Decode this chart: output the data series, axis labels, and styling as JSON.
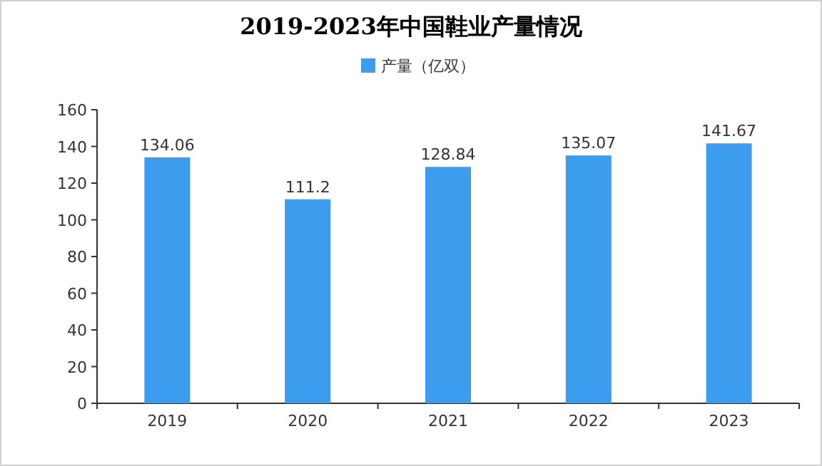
{
  "chart_data": {
    "type": "bar",
    "title": "2019-2023年中国鞋业产量情况",
    "categories": [
      "2019",
      "2020",
      "2021",
      "2022",
      "2023"
    ],
    "series": [
      {
        "name": "产量（亿双）",
        "color": "#3c9cee",
        "values": [
          134.06,
          111.2,
          128.84,
          135.07,
          141.67
        ]
      }
    ],
    "ylim": [
      0,
      160
    ],
    "yticks": [
      0,
      20,
      40,
      60,
      80,
      100,
      120,
      140,
      160
    ],
    "grid": false,
    "legend": "top",
    "data_labels": true
  }
}
